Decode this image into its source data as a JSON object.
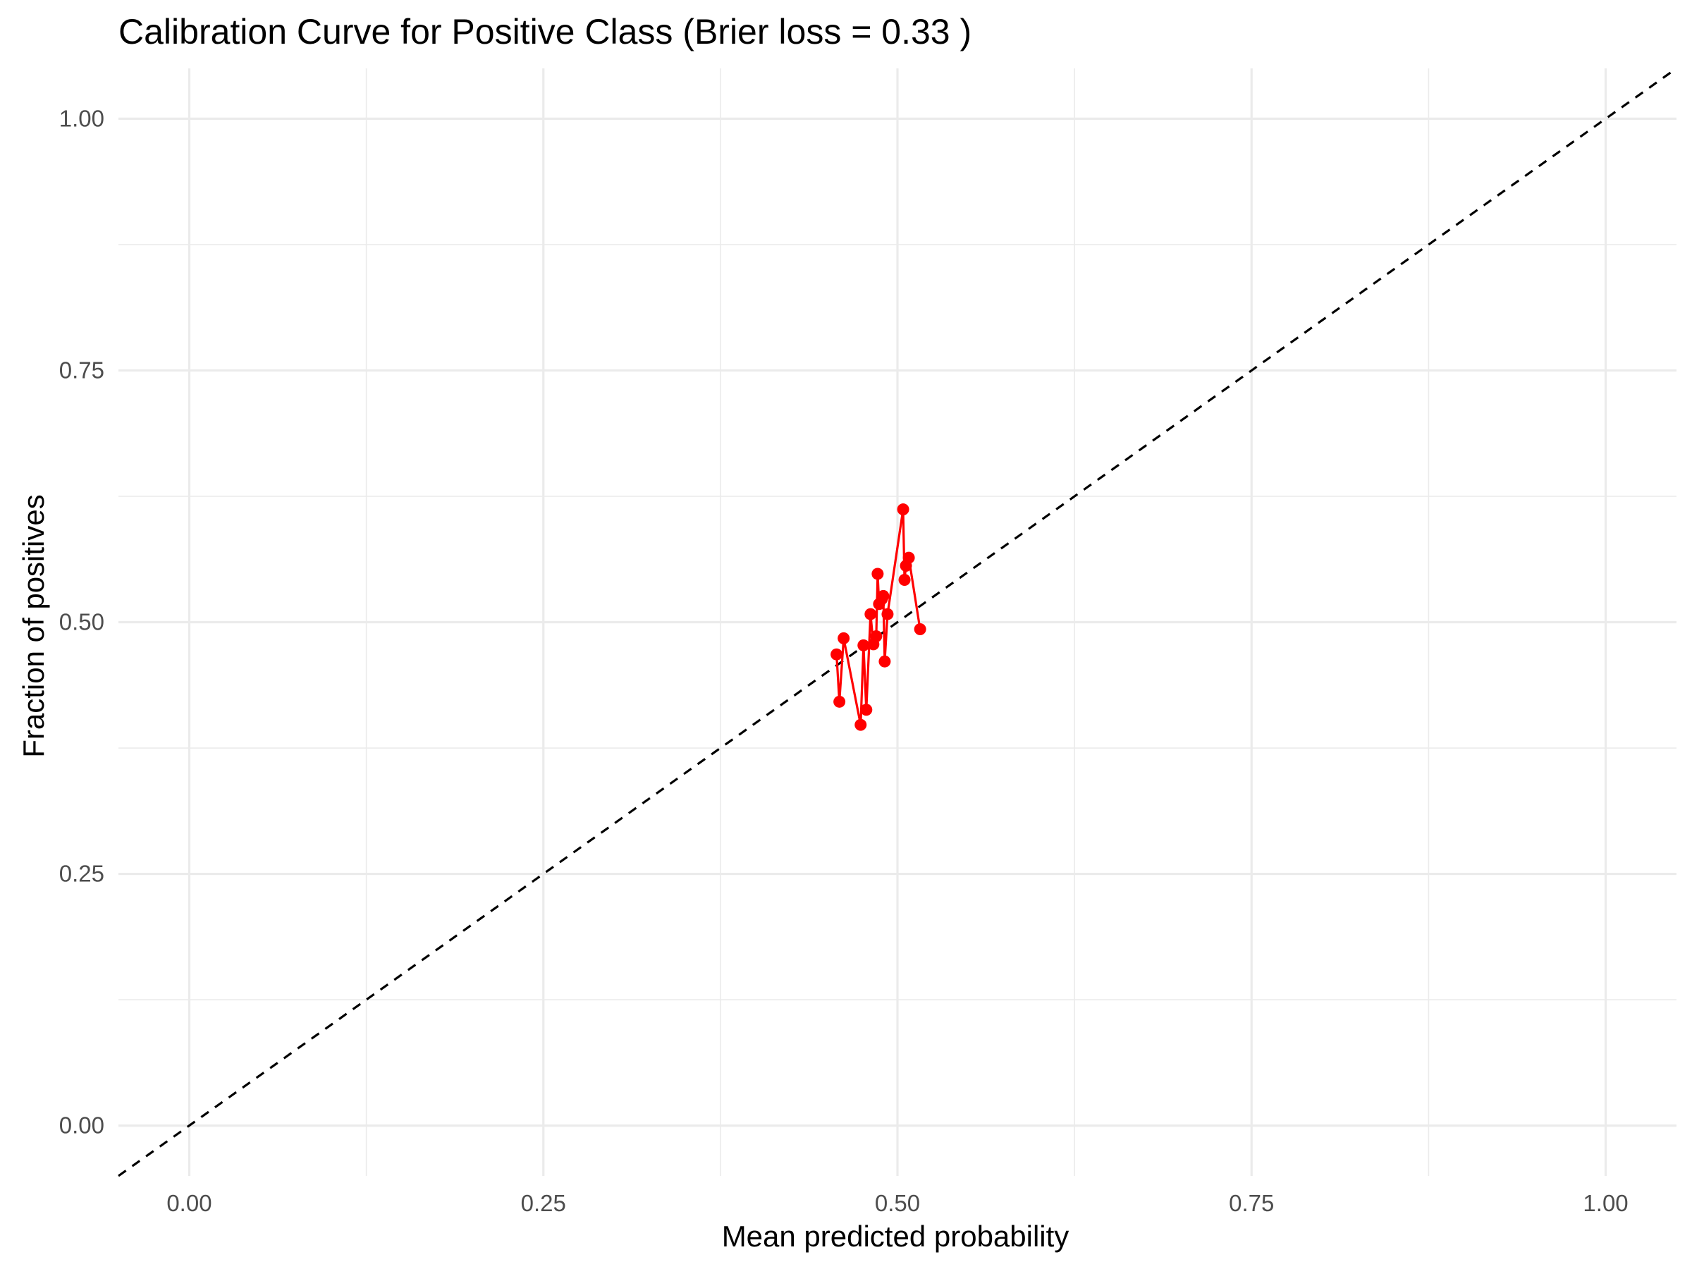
{
  "chart_data": {
    "type": "line",
    "title": "Calibration Curve for Positive Class (Brier loss = 0.33 )",
    "xlabel": "Mean predicted probability",
    "ylabel": "Fraction of positives",
    "xlim": [
      -0.05,
      1.05
    ],
    "ylim": [
      -0.05,
      1.05
    ],
    "x_ticks": [
      "0.00",
      "0.25",
      "0.50",
      "0.75",
      "1.00"
    ],
    "y_ticks": [
      "0.00",
      "0.25",
      "0.50",
      "0.75",
      "1.00"
    ],
    "grid": true,
    "reference_line": {
      "x": [
        -0.05,
        1.05
      ],
      "y": [
        -0.05,
        1.05
      ],
      "style": "dashed",
      "color": "#000000"
    },
    "series": [
      {
        "color": "#ff0000",
        "x": [
          0.457,
          0.459,
          0.462,
          0.474,
          0.476,
          0.478,
          0.481,
          0.483,
          0.485,
          0.486,
          0.487,
          0.489,
          0.49,
          0.491,
          0.493,
          0.504,
          0.505,
          0.506,
          0.508,
          0.516
        ],
        "y": [
          0.468,
          0.421,
          0.484,
          0.398,
          0.477,
          0.413,
          0.508,
          0.478,
          0.486,
          0.548,
          0.518,
          0.523,
          0.526,
          0.461,
          0.508,
          0.612,
          0.542,
          0.556,
          0.564,
          0.493
        ]
      }
    ]
  }
}
